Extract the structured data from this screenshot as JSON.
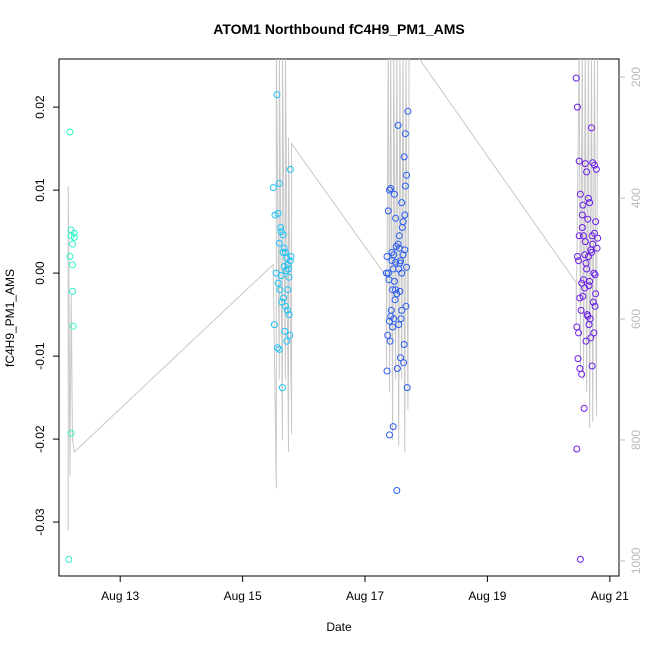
{
  "chart_data": {
    "type": "scatter",
    "title": "ATOM1 Northbound fC4H9_PM1_AMS",
    "xlabel": "Date",
    "ylabel": "fC4H9_PM1_AMS",
    "xlim": [
      12.0,
      21.15
    ],
    "ylim": [
      -0.0365,
      0.0258
    ],
    "y2lim": [
      1025,
      170
    ],
    "x_ticks": [
      {
        "value": 13,
        "label": "Aug 13"
      },
      {
        "value": 15,
        "label": "Aug 15"
      },
      {
        "value": 17,
        "label": "Aug 17"
      },
      {
        "value": 19,
        "label": "Aug 19"
      },
      {
        "value": 21,
        "label": "Aug 21"
      }
    ],
    "y_ticks": [
      {
        "value": -0.03,
        "label": "-0.03"
      },
      {
        "value": -0.02,
        "label": "-0.02"
      },
      {
        "value": -0.01,
        "label": "-0.01"
      },
      {
        "value": 0.0,
        "label": "0.00"
      },
      {
        "value": 0.01,
        "label": "0.01"
      },
      {
        "value": 0.02,
        "label": "0.02"
      }
    ],
    "y2_ticks": [
      {
        "value": 200,
        "label": "200"
      },
      {
        "value": 400,
        "label": "400"
      },
      {
        "value": 600,
        "label": "600"
      },
      {
        "value": 800,
        "label": "800"
      },
      {
        "value": 1000,
        "label": "1000"
      }
    ],
    "altitude_series": [
      [
        12.15,
        950
      ],
      [
        12.15,
        380
      ],
      [
        12.16,
        520
      ],
      [
        12.18,
        860
      ],
      [
        12.2,
        560
      ],
      [
        12.22,
        800
      ],
      [
        12.25,
        820
      ],
      [
        15.5,
        510
      ],
      [
        15.55,
        880
      ],
      [
        15.55,
        150
      ],
      [
        15.6,
        700
      ],
      [
        15.6,
        150
      ],
      [
        15.65,
        800
      ],
      [
        15.65,
        150
      ],
      [
        15.7,
        700
      ],
      [
        15.7,
        150
      ],
      [
        15.75,
        820
      ],
      [
        15.75,
        300
      ],
      [
        15.8,
        790
      ],
      [
        15.8,
        310
      ],
      [
        17.35,
        530
      ],
      [
        17.35,
        680
      ],
      [
        17.38,
        150
      ],
      [
        17.4,
        720
      ],
      [
        17.42,
        150
      ],
      [
        17.45,
        800
      ],
      [
        17.47,
        150
      ],
      [
        17.5,
        700
      ],
      [
        17.52,
        150
      ],
      [
        17.55,
        810
      ],
      [
        17.57,
        150
      ],
      [
        17.6,
        700
      ],
      [
        17.62,
        150
      ],
      [
        17.65,
        820
      ],
      [
        17.67,
        150
      ],
      [
        17.7,
        750
      ],
      [
        17.72,
        150
      ],
      [
        17.75,
        150
      ],
      [
        20.45,
        540
      ],
      [
        20.45,
        610
      ],
      [
        20.5,
        150
      ],
      [
        20.52,
        680
      ],
      [
        20.55,
        150
      ],
      [
        20.57,
        700
      ],
      [
        20.6,
        150
      ],
      [
        20.62,
        720
      ],
      [
        20.65,
        150
      ],
      [
        20.67,
        780
      ],
      [
        20.7,
        150
      ],
      [
        20.72,
        770
      ],
      [
        20.75,
        150
      ],
      [
        20.78,
        760
      ],
      [
        20.8,
        150
      ]
    ],
    "series": [
      {
        "color": "#2ef5c8",
        "x": [
          12.18,
          12.2,
          12.22,
          12.2,
          12.22,
          12.25,
          12.25,
          12.22,
          12.23,
          12.2,
          12.18,
          12.16
        ],
        "y": [
          0.017,
          0.0052,
          0.0035,
          0.0045,
          0.001,
          0.0048,
          0.0043,
          -0.0022,
          -0.0064,
          -0.0193,
          0.002,
          -0.0345
        ]
      },
      {
        "color": "#1fc2f5",
        "x": [
          15.5,
          15.53,
          15.58,
          15.62,
          15.56,
          15.6,
          15.63,
          15.66,
          15.68,
          15.7,
          15.72,
          15.74,
          15.75,
          15.76,
          15.78,
          15.79,
          15.55,
          15.58,
          15.61,
          15.64,
          15.67,
          15.7,
          15.73,
          15.76,
          15.52,
          15.57,
          15.6,
          15.65,
          15.69,
          15.72,
          15.77,
          15.6,
          15.66,
          15.71,
          15.78,
          15.63,
          15.68,
          15.74
        ],
        "y": [
          0.0103,
          0.007,
          0.0072,
          0.0055,
          0.0215,
          0.0108,
          0.005,
          0.0046,
          0.003,
          0.0025,
          0.0018,
          0.001,
          0.0005,
          -0.0005,
          0.0015,
          0.002,
          0.0,
          -0.0012,
          -0.002,
          -0.0035,
          -0.003,
          -0.004,
          -0.0045,
          -0.005,
          -0.0062,
          -0.009,
          -0.0092,
          -0.0138,
          -0.007,
          -0.0082,
          -0.0075,
          0.0036,
          0.0025,
          0.0003,
          0.0125,
          -0.0003,
          0.0008,
          -0.002
        ]
      },
      {
        "color": "#2a5cf0",
        "x": [
          17.35,
          17.38,
          17.4,
          17.42,
          17.44,
          17.46,
          17.48,
          17.5,
          17.52,
          17.54,
          17.56,
          17.58,
          17.6,
          17.62,
          17.64,
          17.66,
          17.68,
          17.7,
          17.36,
          17.39,
          17.43,
          17.47,
          17.51,
          17.55,
          17.59,
          17.63,
          17.67,
          17.37,
          17.41,
          17.45,
          17.49,
          17.53,
          17.57,
          17.61,
          17.65,
          17.69,
          17.4,
          17.46,
          17.52,
          17.58,
          17.64,
          17.38,
          17.44,
          17.5,
          17.56,
          17.62,
          17.68,
          17.42,
          17.48,
          17.54,
          17.6,
          17.66,
          17.36,
          17.45,
          17.55,
          17.65,
          17.4,
          17.5,
          17.6,
          17.47,
          17.57
        ],
        "y": [
          0.0,
          0.0075,
          0.01,
          0.0102,
          0.0015,
          0.0005,
          -0.001,
          -0.002,
          -0.0025,
          0.0035,
          0.003,
          0.0015,
          0.0,
          0.0022,
          0.014,
          0.0168,
          0.0118,
          0.0195,
          0.002,
          -0.0008,
          -0.0045,
          -0.0055,
          0.0032,
          -0.0062,
          -0.0055,
          -0.0108,
          -0.004,
          -0.0075,
          -0.0082,
          -0.0065,
          -0.0032,
          -0.0115,
          -0.0022,
          0.0055,
          0.007,
          -0.0138,
          -0.0195,
          -0.0185,
          -0.0262,
          -0.0102,
          -0.0086,
          0.0,
          0.0025,
          0.0013,
          0.0045,
          0.0062,
          0.0007,
          -0.0052,
          0.0095,
          0.0178,
          0.0085,
          0.0105,
          -0.0118,
          -0.002,
          0.0005,
          0.0028,
          -0.0058,
          0.0066,
          -0.0045,
          0.0022,
          0.0012
        ]
      },
      {
        "color": "#6a1de8",
        "x": [
          20.45,
          20.47,
          20.5,
          20.52,
          20.55,
          20.57,
          20.6,
          20.62,
          20.65,
          20.67,
          20.7,
          20.72,
          20.75,
          20.78,
          20.46,
          20.49,
          20.53,
          20.56,
          20.59,
          20.63,
          20.66,
          20.69,
          20.73,
          20.76,
          20.48,
          20.51,
          20.54,
          20.58,
          20.61,
          20.64,
          20.68,
          20.71,
          20.74,
          20.77,
          20.47,
          20.5,
          20.55,
          20.6,
          20.65,
          20.7,
          20.75,
          20.8,
          20.46,
          20.52,
          20.57,
          20.62,
          20.67,
          20.72,
          20.77,
          20.49,
          20.54,
          20.59,
          20.64,
          20.69,
          20.74,
          20.79,
          20.51,
          20.56,
          20.61,
          20.66,
          20.71,
          20.76
        ],
        "y": [
          0.0235,
          0.02,
          0.0135,
          0.0095,
          0.007,
          0.0045,
          0.0132,
          0.0122,
          0.009,
          0.0085,
          0.0175,
          0.0133,
          0.013,
          0.0125,
          -0.0065,
          -0.0072,
          -0.0045,
          -0.0028,
          -0.0018,
          -0.005,
          -0.0062,
          -0.0078,
          -0.0035,
          -0.004,
          -0.0103,
          -0.0115,
          -0.0122,
          -0.0163,
          -0.0082,
          -0.0052,
          -0.0055,
          -0.0112,
          -0.0072,
          -0.0025,
          0.002,
          0.0045,
          0.0055,
          0.0038,
          0.002,
          0.0025,
          0.0048,
          0.0042,
          -0.0212,
          -0.0345,
          -0.0008,
          0.0005,
          -0.001,
          0.0035,
          0.0062,
          0.0015,
          -0.0012,
          0.0022,
          0.0065,
          0.0028,
          0.0,
          0.003,
          -0.003,
          0.0082,
          0.0012,
          -0.0015,
          0.0045,
          -0.0002
        ]
      }
    ]
  }
}
